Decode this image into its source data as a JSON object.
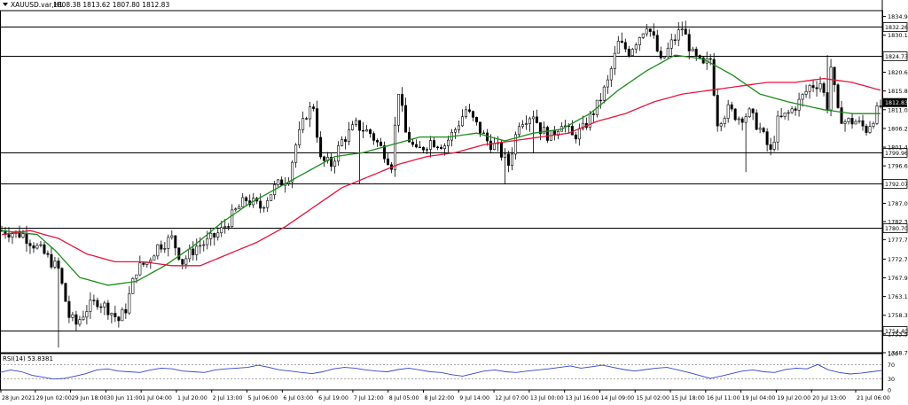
{
  "header": {
    "symbol": "XAUUSD.var,H1",
    "ohlc": "1808.38 1813.62 1807.80 1812.83"
  },
  "colors": {
    "background": "#ffffff",
    "candle": "#000000",
    "ma_fast": "#1a8c1a",
    "ma_slow": "#e8143c",
    "rsi": "#3344cc",
    "level_line": "#000000"
  },
  "chart_data": [
    {
      "type": "candlestick",
      "title": "XAUUSD.var,H1",
      "ylim": [
        1748.7,
        1836.4
      ],
      "y_ticks": [
        "1834.90",
        "1830.10",
        "1820.60",
        "1815.80",
        "1811.00",
        "1806.20",
        "1801.40",
        "1796.60",
        "1787.00",
        "1782.30",
        "1777.70",
        "1772.70",
        "1767.90",
        "1763.10",
        "1758.30",
        "1753.50",
        "1748.70"
      ],
      "x_ticks": [
        "28 Jun 2021",
        "29 Jun 02:00",
        "29 Jun 18:00",
        "30 Jun 11:00",
        "1 Jul 04:00",
        "1 Jul 20:00",
        "2 Jul 13:00",
        "5 Jul 06:00",
        "6 Jul 03:00",
        "6 Jul 19:00",
        "7 Jul 12:00",
        "8 Jul 05:00",
        "8 Jul 22:00",
        "9 Jul 14:00",
        "12 Jul 07:00",
        "13 Jul 00:00",
        "13 Jul 16:00",
        "14 Jul 09:00",
        "15 Jul 02:00",
        "15 Jul 18:00",
        "16 Jul 11:00",
        "19 Jul 04:00",
        "19 Jul 20:00",
        "20 Jul 13:00",
        "21 Jul 06:00"
      ],
      "levels": [
        "1832.26",
        "1824.73",
        "1799.96",
        "1792.07",
        "1780.70",
        "1754.40"
      ],
      "current_price": "1812.83",
      "anchors": [
        [
          0,
          1780
        ],
        [
          6,
          1779
        ],
        [
          12,
          1774
        ],
        [
          16,
          1770
        ],
        [
          19,
          1758
        ],
        [
          21,
          1756
        ],
        [
          24,
          1760
        ],
        [
          27,
          1762
        ],
        [
          30,
          1760
        ],
        [
          33,
          1757
        ],
        [
          35,
          1760
        ],
        [
          38,
          1770
        ],
        [
          41,
          1772
        ],
        [
          44,
          1776
        ],
        [
          48,
          1778
        ],
        [
          51,
          1772
        ],
        [
          55,
          1776
        ],
        [
          58,
          1777
        ],
        [
          62,
          1780
        ],
        [
          66,
          1785
        ],
        [
          69,
          1788
        ],
        [
          73,
          1786
        ],
        [
          77,
          1791
        ],
        [
          81,
          1794
        ],
        [
          83,
          1802
        ],
        [
          86,
          1810
        ],
        [
          88,
          1812
        ],
        [
          90,
          1798
        ],
        [
          93,
          1797
        ],
        [
          96,
          1803
        ],
        [
          100,
          1807
        ],
        [
          104,
          1805
        ],
        [
          108,
          1800
        ],
        [
          110,
          1797
        ],
        [
          112,
          1816
        ],
        [
          114,
          1805
        ],
        [
          117,
          1800
        ],
        [
          121,
          1803
        ],
        [
          125,
          1802
        ],
        [
          128,
          1806
        ],
        [
          131,
          1811
        ],
        [
          134,
          1807
        ],
        [
          137,
          1803
        ],
        [
          140,
          1801
        ],
        [
          143,
          1797
        ],
        [
          146,
          1808
        ],
        [
          150,
          1810
        ],
        [
          152,
          1806
        ],
        [
          155,
          1804
        ],
        [
          158,
          1808
        ],
        [
          161,
          1804
        ],
        [
          164,
          1806
        ],
        [
          168,
          1812
        ],
        [
          171,
          1818
        ],
        [
          174,
          1828
        ],
        [
          177,
          1826
        ],
        [
          180,
          1830
        ],
        [
          182,
          1833
        ],
        [
          184,
          1829
        ],
        [
          186,
          1823
        ],
        [
          189,
          1828
        ],
        [
          192,
          1832
        ],
        [
          195,
          1825
        ],
        [
          198,
          1822
        ],
        [
          200,
          1824
        ],
        [
          202,
          1808
        ],
        [
          205,
          1811
        ],
        [
          208,
          1809
        ],
        [
          211,
          1810
        ],
        [
          214,
          1806
        ],
        [
          217,
          1800
        ],
        [
          219,
          1808
        ],
        [
          222,
          1810
        ],
        [
          225,
          1813
        ],
        [
          228,
          1817
        ],
        [
          231,
          1818
        ],
        [
          233,
          1812
        ],
        [
          234,
          1822
        ],
        [
          236,
          1810
        ],
        [
          238,
          1808
        ],
        [
          241,
          1808
        ],
        [
          244,
          1806
        ],
        [
          246,
          1809
        ],
        [
          248,
          1812
        ]
      ],
      "wick_extremes": [
        [
          16,
          1750
        ],
        [
          101,
          1792
        ],
        [
          142,
          1792
        ],
        [
          150,
          1800
        ],
        [
          210,
          1795
        ],
        [
          233,
          1825
        ]
      ],
      "series": [
        {
          "values": [
            [
              0,
              1780
            ],
            [
              10,
              1779
            ],
            [
              15,
              1775
            ],
            [
              22,
              1768
            ],
            [
              30,
              1766
            ],
            [
              38,
              1767
            ],
            [
              46,
              1771
            ],
            [
              54,
              1776
            ],
            [
              62,
              1782
            ],
            [
              70,
              1787
            ],
            [
              78,
              1791
            ],
            [
              86,
              1795
            ],
            [
              94,
              1799
            ],
            [
              102,
              1800
            ],
            [
              110,
              1802
            ],
            [
              118,
              1804
            ],
            [
              126,
              1804
            ],
            [
              134,
              1805
            ],
            [
              142,
              1803
            ],
            [
              150,
              1805
            ],
            [
              158,
              1806
            ],
            [
              166,
              1810
            ],
            [
              174,
              1816
            ],
            [
              182,
              1821
            ],
            [
              190,
              1825
            ],
            [
              198,
              1824
            ],
            [
              206,
              1820
            ],
            [
              214,
              1815
            ],
            [
              222,
              1813
            ],
            [
              232,
              1811
            ],
            [
              240,
              1810
            ],
            [
              248,
              1810
            ]
          ]
        },
        {
          "values": [
            [
              0,
              1779
            ],
            [
              8,
              1780
            ],
            [
              16,
              1778
            ],
            [
              24,
              1774
            ],
            [
              32,
              1772
            ],
            [
              40,
              1772
            ],
            [
              48,
              1771
            ],
            [
              56,
              1771
            ],
            [
              64,
              1774
            ],
            [
              72,
              1777
            ],
            [
              80,
              1781
            ],
            [
              88,
              1786
            ],
            [
              96,
              1791
            ],
            [
              104,
              1794
            ],
            [
              112,
              1797
            ],
            [
              120,
              1799
            ],
            [
              128,
              1800
            ],
            [
              136,
              1802
            ],
            [
              144,
              1803
            ],
            [
              152,
              1804
            ],
            [
              160,
              1805
            ],
            [
              168,
              1808
            ],
            [
              176,
              1810
            ],
            [
              184,
              1813
            ],
            [
              192,
              1815
            ],
            [
              200,
              1816
            ],
            [
              208,
              1817
            ],
            [
              216,
              1818
            ],
            [
              224,
              1818
            ],
            [
              232,
              1819
            ],
            [
              240,
              1818
            ],
            [
              248,
              1816
            ]
          ]
        }
      ],
      "candle_count": 249
    },
    {
      "type": "line",
      "title": "RSI(14) 53.8381",
      "ylim": [
        0,
        100
      ],
      "y_ticks": [
        "100",
        "70",
        "30",
        "0"
      ],
      "levels": [
        70,
        30
      ],
      "values": [
        48,
        55,
        50,
        40,
        35,
        30,
        32,
        38,
        45,
        55,
        58,
        52,
        50,
        48,
        55,
        60,
        58,
        52,
        50,
        48,
        55,
        58,
        60,
        62,
        68,
        62,
        55,
        52,
        48,
        45,
        50,
        58,
        62,
        60,
        55,
        52,
        50,
        56,
        60,
        55,
        50,
        48,
        42,
        38,
        45,
        52,
        55,
        50,
        48,
        52,
        55,
        58,
        62,
        66,
        60,
        64,
        68,
        62,
        56,
        52,
        56,
        60,
        62,
        55,
        48,
        40,
        32,
        38,
        45,
        52,
        55,
        50,
        48,
        56,
        60,
        58,
        70,
        55,
        48,
        44,
        46,
        50,
        53.84
      ]
    }
  ]
}
